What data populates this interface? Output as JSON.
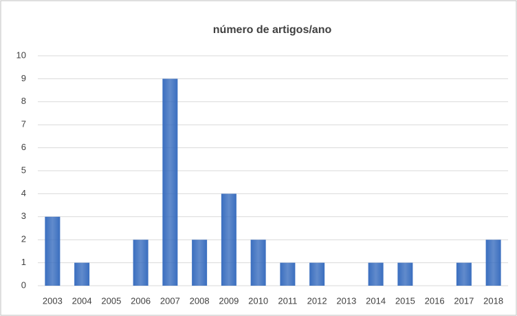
{
  "chart_data": {
    "type": "bar",
    "title": "número de artigos/ano",
    "categories": [
      "2003",
      "2004",
      "2005",
      "2006",
      "2007",
      "2008",
      "2009",
      "2010",
      "2011",
      "2012",
      "2013",
      "2014",
      "2015",
      "2016",
      "2017",
      "2018"
    ],
    "values": [
      3,
      1,
      0,
      2,
      9,
      2,
      4,
      2,
      1,
      1,
      0,
      1,
      1,
      0,
      1,
      2
    ],
    "color": "#3a6ebf",
    "ylim": [
      0,
      10
    ],
    "yticks": [
      0,
      1,
      2,
      3,
      4,
      5,
      6,
      7,
      8,
      9,
      10
    ],
    "grid": true
  }
}
